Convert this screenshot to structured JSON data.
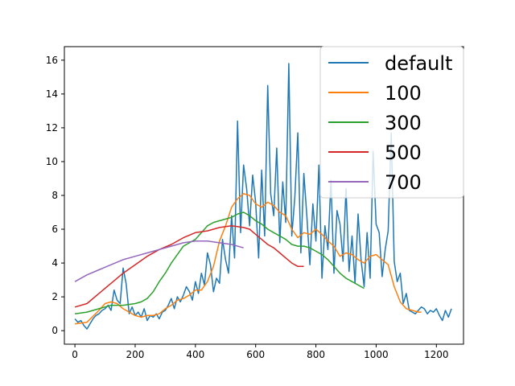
{
  "chart_data": {
    "type": "line",
    "title": "",
    "xlabel": "",
    "ylabel": "",
    "xlim": [
      -35,
      1290
    ],
    "ylim": [
      -0.8,
      16.8
    ],
    "xticks": [
      0,
      200,
      400,
      600,
      800,
      1000,
      1200
    ],
    "yticks": [
      0,
      2,
      4,
      6,
      8,
      10,
      12,
      14,
      16
    ],
    "grid": false,
    "legend_position": "top-right",
    "series": [
      {
        "name": "default",
        "color": "#1f77b4",
        "x": [
          0,
          10,
          20,
          30,
          40,
          50,
          60,
          70,
          80,
          90,
          100,
          110,
          120,
          130,
          140,
          150,
          160,
          170,
          180,
          190,
          200,
          210,
          220,
          230,
          240,
          250,
          260,
          270,
          280,
          290,
          300,
          310,
          320,
          330,
          340,
          350,
          360,
          370,
          380,
          390,
          400,
          410,
          420,
          430,
          440,
          450,
          460,
          470,
          480,
          490,
          500,
          510,
          520,
          530,
          540,
          550,
          560,
          570,
          580,
          590,
          600,
          610,
          620,
          630,
          640,
          650,
          660,
          670,
          680,
          690,
          700,
          710,
          720,
          730,
          740,
          750,
          760,
          770,
          780,
          790,
          800,
          810,
          820,
          830,
          840,
          850,
          860,
          870,
          880,
          890,
          900,
          910,
          920,
          930,
          940,
          950,
          960,
          970,
          980,
          990,
          1000,
          1010,
          1020,
          1030,
          1040,
          1050,
          1060,
          1070,
          1080,
          1090,
          1100,
          1110,
          1120,
          1130,
          1140,
          1150,
          1160,
          1170,
          1180,
          1190,
          1200,
          1210,
          1220,
          1230,
          1240,
          1250
        ],
        "y": [
          0.7,
          0.5,
          0.6,
          0.3,
          0.1,
          0.4,
          0.7,
          0.9,
          1.0,
          1.2,
          1.3,
          1.5,
          1.2,
          2.4,
          1.8,
          1.6,
          3.7,
          2.8,
          1.0,
          1.4,
          0.9,
          1.1,
          0.8,
          1.3,
          0.6,
          0.9,
          0.8,
          1.0,
          0.7,
          1.1,
          1.2,
          1.5,
          1.9,
          1.3,
          2.0,
          1.7,
          2.1,
          2.6,
          2.3,
          1.8,
          2.9,
          2.2,
          3.4,
          2.7,
          4.6,
          3.9,
          2.3,
          3.1,
          2.8,
          5.4,
          4.2,
          3.4,
          6.8,
          4.3,
          12.4,
          5.8,
          9.8,
          8.4,
          6.2,
          9.2,
          7.6,
          4.3,
          9.5,
          5.6,
          14.5,
          8.1,
          6.8,
          10.8,
          5.2,
          8.8,
          6.4,
          15.8,
          5.6,
          7.9,
          11.7,
          4.6,
          9.3,
          6.8,
          3.9,
          7.5,
          5.3,
          9.8,
          3.1,
          6.2,
          4.8,
          8.9,
          3.4,
          7.1,
          6.3,
          4.1,
          8.4,
          3.5,
          5.6,
          2.8,
          6.9,
          4.2,
          2.6,
          5.8,
          3.1,
          10.6,
          6.3,
          5.8,
          3.2,
          4.8,
          5.9,
          11.7,
          4.1,
          2.9,
          3.4,
          1.6,
          2.2,
          1.2,
          1.1,
          1.0,
          1.2,
          1.4,
          1.3,
          1.0,
          1.2,
          1.1,
          1.3,
          0.9,
          0.6,
          1.2,
          0.8,
          1.3
        ]
      },
      {
        "name": "100",
        "color": "#ff7f0e",
        "x": [
          0,
          40,
          80,
          100,
          120,
          140,
          160,
          180,
          200,
          220,
          240,
          260,
          280,
          300,
          320,
          340,
          360,
          380,
          400,
          420,
          440,
          460,
          480,
          500,
          520,
          540,
          560,
          580,
          600,
          620,
          640,
          660,
          680,
          700,
          720,
          740,
          760,
          780,
          800,
          820,
          840,
          860,
          880,
          900,
          920,
          940,
          960,
          980,
          1000,
          1020,
          1040,
          1060,
          1080,
          1100,
          1120,
          1140,
          1150
        ],
        "y": [
          0.4,
          0.5,
          1.2,
          1.6,
          1.7,
          1.6,
          1.3,
          1.1,
          0.9,
          0.8,
          0.9,
          0.9,
          1.0,
          1.3,
          1.5,
          1.8,
          1.9,
          2.1,
          2.4,
          2.4,
          2.9,
          3.8,
          5.3,
          6.2,
          7.3,
          7.8,
          8.1,
          8.0,
          7.5,
          7.3,
          7.6,
          7.4,
          7.0,
          6.8,
          6.0,
          5.5,
          5.8,
          5.7,
          6.0,
          5.7,
          5.3,
          5.0,
          4.4,
          4.6,
          4.5,
          4.2,
          4.0,
          4.4,
          4.5,
          4.2,
          3.9,
          2.6,
          1.7,
          1.3,
          1.2,
          1.1,
          1.1
        ]
      },
      {
        "name": "300",
        "color": "#2ca02c",
        "x": [
          0,
          40,
          80,
          120,
          160,
          200,
          220,
          240,
          260,
          280,
          300,
          320,
          340,
          360,
          380,
          400,
          420,
          440,
          460,
          480,
          500,
          520,
          540,
          560,
          580,
          600,
          620,
          640,
          660,
          680,
          700,
          720,
          740,
          760,
          780,
          800,
          820,
          840,
          860,
          880,
          900,
          920,
          940,
          960
        ],
        "y": [
          1.0,
          1.1,
          1.3,
          1.5,
          1.5,
          1.6,
          1.7,
          1.9,
          2.3,
          2.9,
          3.4,
          4.0,
          4.5,
          5.0,
          5.2,
          5.4,
          5.8,
          6.2,
          6.4,
          6.5,
          6.6,
          6.7,
          6.9,
          7.0,
          6.8,
          6.5,
          6.3,
          6.0,
          5.8,
          5.6,
          5.4,
          5.1,
          5.0,
          5.0,
          4.9,
          4.7,
          4.5,
          4.2,
          3.8,
          3.4,
          3.1,
          2.9,
          2.7,
          2.5
        ]
      },
      {
        "name": "500",
        "color": "#d62728",
        "x": [
          0,
          40,
          80,
          120,
          160,
          200,
          240,
          280,
          320,
          360,
          400,
          440,
          480,
          520,
          560,
          580,
          600,
          620,
          640,
          660,
          680,
          700,
          720,
          740,
          760
        ],
        "y": [
          1.4,
          1.6,
          2.2,
          2.8,
          3.4,
          3.9,
          4.4,
          4.8,
          5.1,
          5.5,
          5.8,
          5.9,
          6.1,
          6.2,
          6.1,
          6.0,
          5.7,
          5.4,
          5.1,
          4.9,
          4.6,
          4.3,
          4.0,
          3.8,
          3.8
        ]
      },
      {
        "name": "700",
        "color": "#9467bd",
        "x": [
          0,
          40,
          80,
          120,
          160,
          200,
          240,
          280,
          320,
          360,
          400,
          440,
          480,
          520,
          560
        ],
        "y": [
          2.9,
          3.3,
          3.6,
          3.9,
          4.2,
          4.4,
          4.6,
          4.8,
          5.0,
          5.2,
          5.3,
          5.3,
          5.2,
          5.1,
          4.9
        ]
      }
    ]
  }
}
